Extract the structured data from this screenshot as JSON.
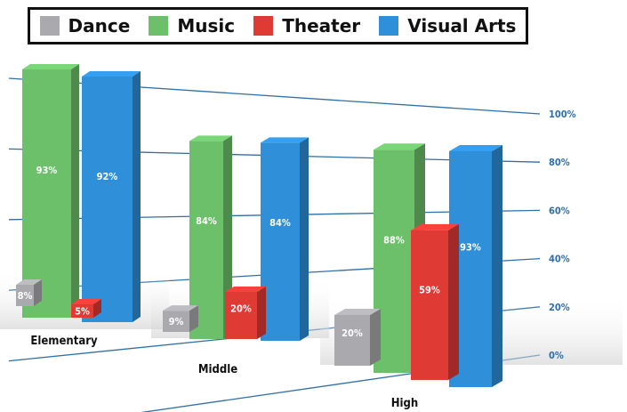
{
  "legend": [
    {
      "label": "Dance",
      "color": "#a9a9ae"
    },
    {
      "label": "Music",
      "color": "#6cc06a"
    },
    {
      "label": "Theater",
      "color": "#e03a35"
    },
    {
      "label": "Visual Arts",
      "color": "#2f8fd8"
    }
  ],
  "chart_data": {
    "type": "bar",
    "categories": [
      "Elementary",
      "Middle",
      "High"
    ],
    "series": [
      {
        "name": "Dance",
        "values": [
          8,
          9,
          20
        ],
        "labels": [
          "8%",
          "9%",
          "20%"
        ]
      },
      {
        "name": "Music",
        "values": [
          93,
          84,
          88
        ],
        "labels": [
          "93%",
          "84%",
          "88%"
        ]
      },
      {
        "name": "Theater",
        "values": [
          5,
          20,
          59
        ],
        "labels": [
          "5%",
          "20%",
          "59%"
        ]
      },
      {
        "name": "Visual Arts",
        "values": [
          92,
          84,
          93
        ],
        "labels": [
          "92%",
          "84%",
          "93%"
        ]
      }
    ],
    "ylim": [
      0,
      100
    ],
    "y_ticks": [
      "0%",
      "20%",
      "40%",
      "60%",
      "80%",
      "100%"
    ],
    "grid": true,
    "legend_position": "top"
  }
}
